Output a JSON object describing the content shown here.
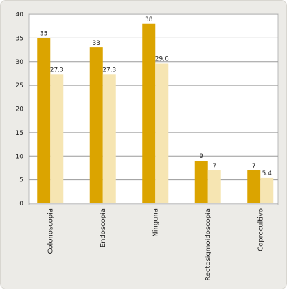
{
  "chart_data": {
    "type": "bar",
    "categories": [
      "Colonoscopia",
      "Endoscopia",
      "Ninguna",
      "Rectosigmoidoscopia",
      "Coprocultivo"
    ],
    "series": [
      {
        "color": "#dba400",
        "values": [
          35,
          33,
          38,
          9,
          7
        ]
      },
      {
        "color": "#f6e5b2",
        "values": [
          27.3,
          27.3,
          29.6,
          7,
          5.4
        ]
      }
    ],
    "ylim": [
      0,
      40
    ],
    "yticks": [
      0,
      5,
      10,
      15,
      20,
      25,
      30,
      35,
      40
    ],
    "grid": true
  }
}
